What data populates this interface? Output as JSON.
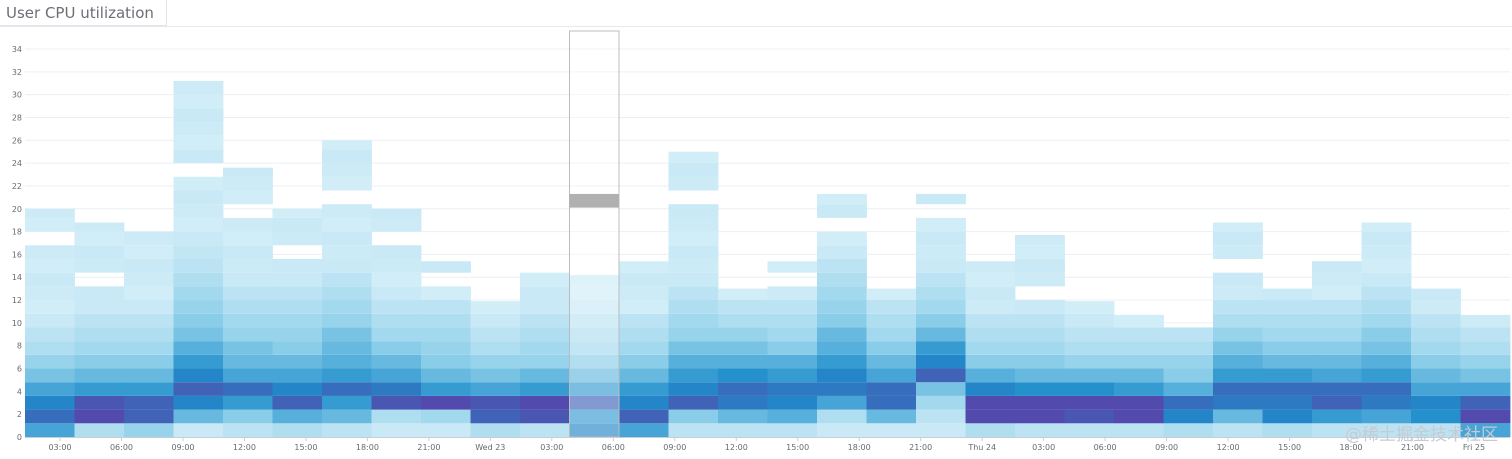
{
  "widget": {
    "title": "User CPU utilization"
  },
  "watermark": "@稀土掘金技术社区",
  "colors": {
    "scale": [
      "#e0f3fa",
      "#8fd0ea",
      "#1e8ecb",
      "#5b3fa8"
    ],
    "selected_cell": "#b0b0b0",
    "gridline": "#eceff2",
    "axis": "#c9ced4"
  },
  "chart_data": {
    "type": "heatmap",
    "title": "User CPU utilization",
    "xlabel": "",
    "ylabel": "",
    "ylim": [
      0,
      35
    ],
    "y_bucket_size": 1.2,
    "y_ticks": [
      "0",
      "2",
      "4",
      "6",
      "8",
      "10",
      "12",
      "14",
      "16",
      "18",
      "20",
      "22",
      "24",
      "26",
      "28",
      "30",
      "32",
      "34"
    ],
    "x_tick_labels": [
      "03:00",
      "06:00",
      "09:00",
      "12:00",
      "15:00",
      "18:00",
      "21:00",
      "Wed 23",
      "03:00",
      "06:00",
      "09:00",
      "12:00",
      "15:00",
      "18:00",
      "21:00",
      "Thu 24",
      "03:00",
      "06:00",
      "09:00",
      "12:00",
      "15:00",
      "18:00",
      "21:00",
      "Fri 25"
    ],
    "columns": 30,
    "selected_column": 11,
    "selected_cell": {
      "column": 11,
      "y_range": [
        20.1,
        21.3
      ]
    },
    "column_tops": [
      20.0,
      18.8,
      18.8,
      31.8,
      23.6,
      20.0,
      26.0,
      20.0,
      15.4,
      11.9,
      15.4,
      14.2,
      15.4,
      25.0,
      13.0,
      15.4,
      21.3,
      13.0,
      21.3,
      15.4,
      17.7,
      11.9,
      10.7,
      10.7,
      18.8,
      13.0,
      15.4,
      18.8,
      13.0,
      10.7
    ],
    "intensity_profiles": {
      "0": [
        0.55,
        0.8,
        0.7,
        0.55,
        0.4,
        0.3,
        0.2,
        0.15,
        0.1
      ],
      "1": [
        0.2,
        0.95,
        0.9,
        0.6,
        0.45,
        0.35,
        0.25,
        0.2,
        0.15,
        0.1
      ],
      "2": [
        0.3,
        0.85,
        0.85,
        0.6,
        0.45,
        0.35,
        0.25,
        0.2,
        0.15
      ],
      "3": [
        0.1,
        0.45,
        0.7,
        0.85,
        0.7,
        0.6,
        0.5,
        0.4,
        0.35,
        0.3,
        0.25,
        0.2,
        0.15,
        0.12,
        0.1
      ],
      "4": [
        0.15,
        0.35,
        0.6,
        0.8,
        0.55,
        0.45,
        0.4,
        0.3,
        0.25,
        0.2,
        0.15,
        0.1
      ],
      "5": [
        0.2,
        0.5,
        0.85,
        0.7,
        0.55,
        0.45,
        0.35,
        0.3,
        0.25,
        0.2,
        0.15,
        0.1
      ],
      "6": [
        0.15,
        0.45,
        0.6,
        0.8,
        0.6,
        0.5,
        0.45,
        0.4,
        0.3,
        0.25,
        0.2,
        0.15,
        0.1
      ],
      "7": [
        0.1,
        0.2,
        0.9,
        0.75,
        0.55,
        0.45,
        0.35,
        0.25,
        0.2,
        0.15,
        0.1
      ],
      "8": [
        0.1,
        0.25,
        0.95,
        0.6,
        0.45,
        0.35,
        0.3,
        0.25,
        0.2,
        0.15
      ],
      "9": [
        0.2,
        0.85,
        0.9,
        0.55,
        0.4,
        0.3,
        0.2,
        0.15,
        0.1
      ],
      "10": [
        0.15,
        0.9,
        0.95,
        0.6,
        0.45,
        0.3,
        0.25,
        0.2,
        0.15,
        0.1
      ],
      "11": [
        0.7,
        0.6,
        0.85,
        0.6,
        0.45,
        0.35,
        0.25,
        0.2,
        0.15,
        0.1
      ],
      "12": [
        0.55,
        0.85,
        0.7,
        0.6,
        0.45,
        0.35,
        0.25,
        0.2,
        0.15
      ],
      "13": [
        0.15,
        0.35,
        0.85,
        0.7,
        0.6,
        0.5,
        0.4,
        0.3,
        0.25,
        0.2,
        0.15,
        0.1
      ],
      "14": [
        0.15,
        0.45,
        0.75,
        0.8,
        0.65,
        0.5,
        0.4,
        0.3,
        0.2,
        0.15
      ],
      "15": [
        0.15,
        0.5,
        0.7,
        0.75,
        0.6,
        0.5,
        0.35,
        0.25,
        0.2,
        0.15
      ],
      "16": [
        0.1,
        0.2,
        0.55,
        0.75,
        0.7,
        0.6,
        0.5,
        0.45,
        0.35,
        0.3,
        0.25,
        0.2,
        0.15,
        0.1
      ],
      "17": [
        0.1,
        0.45,
        0.8,
        0.8,
        0.55,
        0.45,
        0.35,
        0.25,
        0.2,
        0.15
      ],
      "18": [
        0.1,
        0.15,
        0.25,
        0.4,
        0.85,
        0.7,
        0.6,
        0.45,
        0.35,
        0.25,
        0.2,
        0.15,
        0.1
      ],
      "19": [
        0.2,
        0.95,
        0.95,
        0.7,
        0.5,
        0.35,
        0.25,
        0.2,
        0.15
      ],
      "20": [
        0.15,
        0.95,
        0.95,
        0.65,
        0.45,
        0.35,
        0.25,
        0.2,
        0.15,
        0.1
      ],
      "21": [
        0.15,
        0.9,
        0.95,
        0.65,
        0.45,
        0.3,
        0.2,
        0.15
      ],
      "22": [
        0.15,
        0.95,
        0.95,
        0.6,
        0.45,
        0.3,
        0.2,
        0.15
      ],
      "23": [
        0.2,
        0.7,
        0.8,
        0.5,
        0.35,
        0.3,
        0.2,
        0.15
      ],
      "24": [
        0.15,
        0.45,
        0.75,
        0.8,
        0.6,
        0.5,
        0.4,
        0.3,
        0.2,
        0.15
      ],
      "25": [
        0.2,
        0.7,
        0.75,
        0.8,
        0.6,
        0.45,
        0.35,
        0.25,
        0.2,
        0.15
      ],
      "26": [
        0.15,
        0.6,
        0.85,
        0.8,
        0.55,
        0.45,
        0.35,
        0.25,
        0.2,
        0.15
      ],
      "27": [
        0.15,
        0.55,
        0.75,
        0.8,
        0.6,
        0.5,
        0.4,
        0.35,
        0.25,
        0.2,
        0.15
      ],
      "28": [
        0.15,
        0.65,
        0.7,
        0.55,
        0.45,
        0.35,
        0.25,
        0.2,
        0.15
      ],
      "29": [
        0.55,
        0.95,
        0.85,
        0.55,
        0.4,
        0.3,
        0.2,
        0.15
      ]
    },
    "grid": true,
    "legend": "none"
  }
}
